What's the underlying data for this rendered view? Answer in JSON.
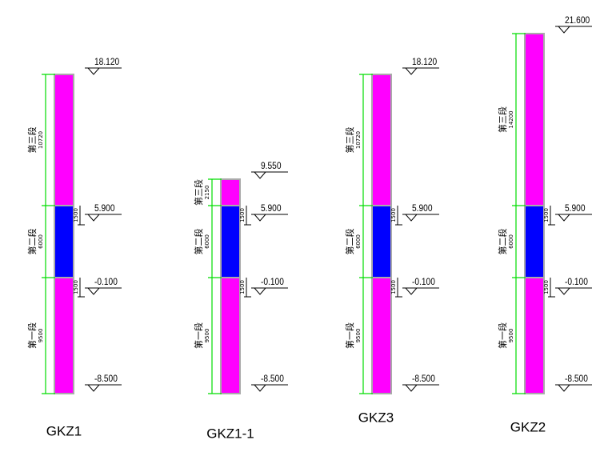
{
  "columns": [
    {
      "name": "GKZ1",
      "elevations": [
        "18.120",
        "5.900",
        "-0.100",
        "-8.500"
      ],
      "segments": [
        {
          "label": "第三段",
          "dim": "10720"
        },
        {
          "label": "第二段",
          "dim": "6000"
        },
        {
          "label": "第一段",
          "dim": "9500"
        }
      ],
      "small_dims": [
        "1500",
        "1500"
      ]
    },
    {
      "name": "GKZ1-1",
      "elevations": [
        "9.550",
        "5.900",
        "-0.100",
        "-8.500"
      ],
      "segments": [
        {
          "label": "第三段",
          "dim": "2150"
        },
        {
          "label": "第二段",
          "dim": "6000"
        },
        {
          "label": "第一段",
          "dim": "9500"
        }
      ],
      "small_dims": [
        "1500",
        "1500"
      ]
    },
    {
      "name": "GKZ3",
      "elevations": [
        "18.120",
        "5.900",
        "-0.100",
        "-8.500"
      ],
      "segments": [
        {
          "label": "第三段",
          "dim": "10720"
        },
        {
          "label": "第二段",
          "dim": "6000"
        },
        {
          "label": "第一段",
          "dim": "9500"
        }
      ],
      "small_dims": [
        "1500",
        "1500"
      ]
    },
    {
      "name": "GKZ2",
      "elevations": [
        "21.600",
        "5.900",
        "-0.100",
        "-8.500"
      ],
      "segments": [
        {
          "label": "第三段",
          "dim": "14200"
        },
        {
          "label": "第二段",
          "dim": "6000"
        },
        {
          "label": "第一段",
          "dim": "9500"
        }
      ],
      "small_dims": [
        "1500",
        "1500"
      ]
    }
  ]
}
